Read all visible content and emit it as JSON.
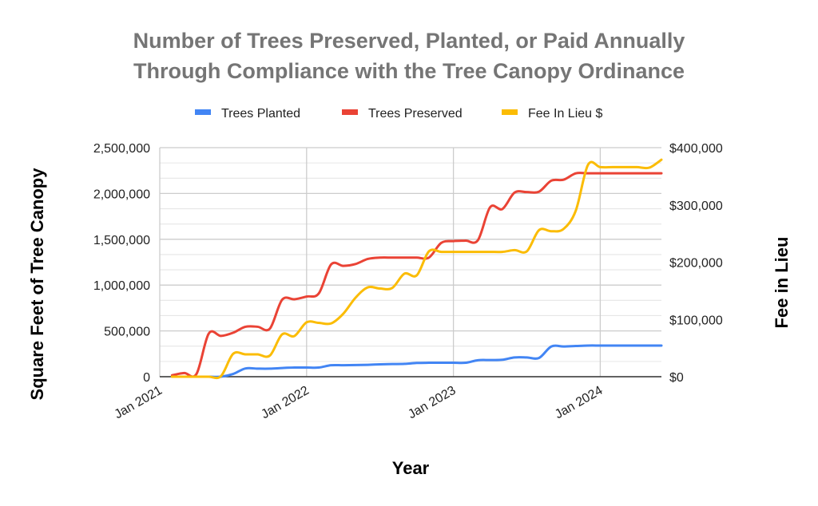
{
  "chart_data": {
    "type": "line",
    "title": [
      "Number of Trees Preserved, Planted, or Paid Annually",
      "Through Compliance with the Tree Canopy Ordinance"
    ],
    "xlabel": "Year",
    "ylabel": "Square Feet of Tree Canopy",
    "y2label": "Fee in Lieu",
    "legend_position": "top",
    "grid": true,
    "xlim": [
      "2021-01",
      "2024-06"
    ],
    "ylim": [
      0,
      2500000
    ],
    "y2lim": [
      0,
      400000
    ],
    "x_ticks": [
      "Jan 2021",
      "Jan 2022",
      "Jan 2023",
      "Jan 2024"
    ],
    "y_ticks": [
      "0",
      "500,000",
      "1,000,000",
      "1,500,000",
      "2,000,000",
      "2,500,000"
    ],
    "y2_ticks": [
      "$0",
      "$100,000",
      "$200,000",
      "$300,000",
      "$400,000"
    ],
    "x": [
      "2021-02",
      "2021-03",
      "2021-04",
      "2021-05",
      "2021-06",
      "2021-07",
      "2021-08",
      "2021-09",
      "2021-10",
      "2021-11",
      "2021-12",
      "2022-01",
      "2022-02",
      "2022-03",
      "2022-04",
      "2022-05",
      "2022-06",
      "2022-07",
      "2022-08",
      "2022-09",
      "2022-10",
      "2022-11",
      "2022-12",
      "2023-01",
      "2023-02",
      "2023-03",
      "2023-04",
      "2023-05",
      "2023-06",
      "2023-07",
      "2023-08",
      "2023-09",
      "2023-10",
      "2023-11",
      "2023-12",
      "2024-01",
      "2024-02",
      "2024-03",
      "2024-04",
      "2024-05",
      "2024-06"
    ],
    "series": [
      {
        "name": "Trees Planted",
        "axis": "left",
        "color": "#4285f4",
        "values": [
          0,
          0,
          0,
          0,
          0,
          30000,
          90000,
          88000,
          88000,
          95000,
          100000,
          100000,
          100000,
          125000,
          125000,
          127000,
          130000,
          135000,
          138000,
          140000,
          150000,
          152000,
          152000,
          152000,
          152000,
          180000,
          182000,
          185000,
          210000,
          210000,
          205000,
          330000,
          330000,
          335000,
          340000,
          340000,
          340000,
          340000,
          340000,
          340000,
          340000
        ]
      },
      {
        "name": "Trees Preserved",
        "axis": "left",
        "color": "#ea4335",
        "values": [
          15000,
          40000,
          30000,
          470000,
          445000,
          480000,
          545000,
          545000,
          525000,
          840000,
          845000,
          875000,
          910000,
          1225000,
          1210000,
          1230000,
          1285000,
          1300000,
          1300000,
          1300000,
          1300000,
          1300000,
          1460000,
          1480000,
          1485000,
          1490000,
          1850000,
          1830000,
          2010000,
          2015000,
          2020000,
          2140000,
          2150000,
          2220000,
          2220000,
          2220000,
          2220000,
          2220000,
          2220000,
          2220000,
          2220000
        ]
      },
      {
        "name": "Fee In Lieu $",
        "axis": "right",
        "color": "#fbbc04",
        "values": [
          0,
          0,
          0,
          0,
          1000,
          40000,
          39000,
          39000,
          37000,
          74000,
          71000,
          95000,
          94000,
          93000,
          110000,
          138000,
          156000,
          154000,
          155000,
          180000,
          177000,
          219000,
          218000,
          218000,
          218000,
          218000,
          218000,
          218000,
          221000,
          219000,
          256000,
          254000,
          258000,
          290000,
          370000,
          366000,
          366000,
          366000,
          366000,
          365000,
          379000
        ]
      }
    ]
  }
}
